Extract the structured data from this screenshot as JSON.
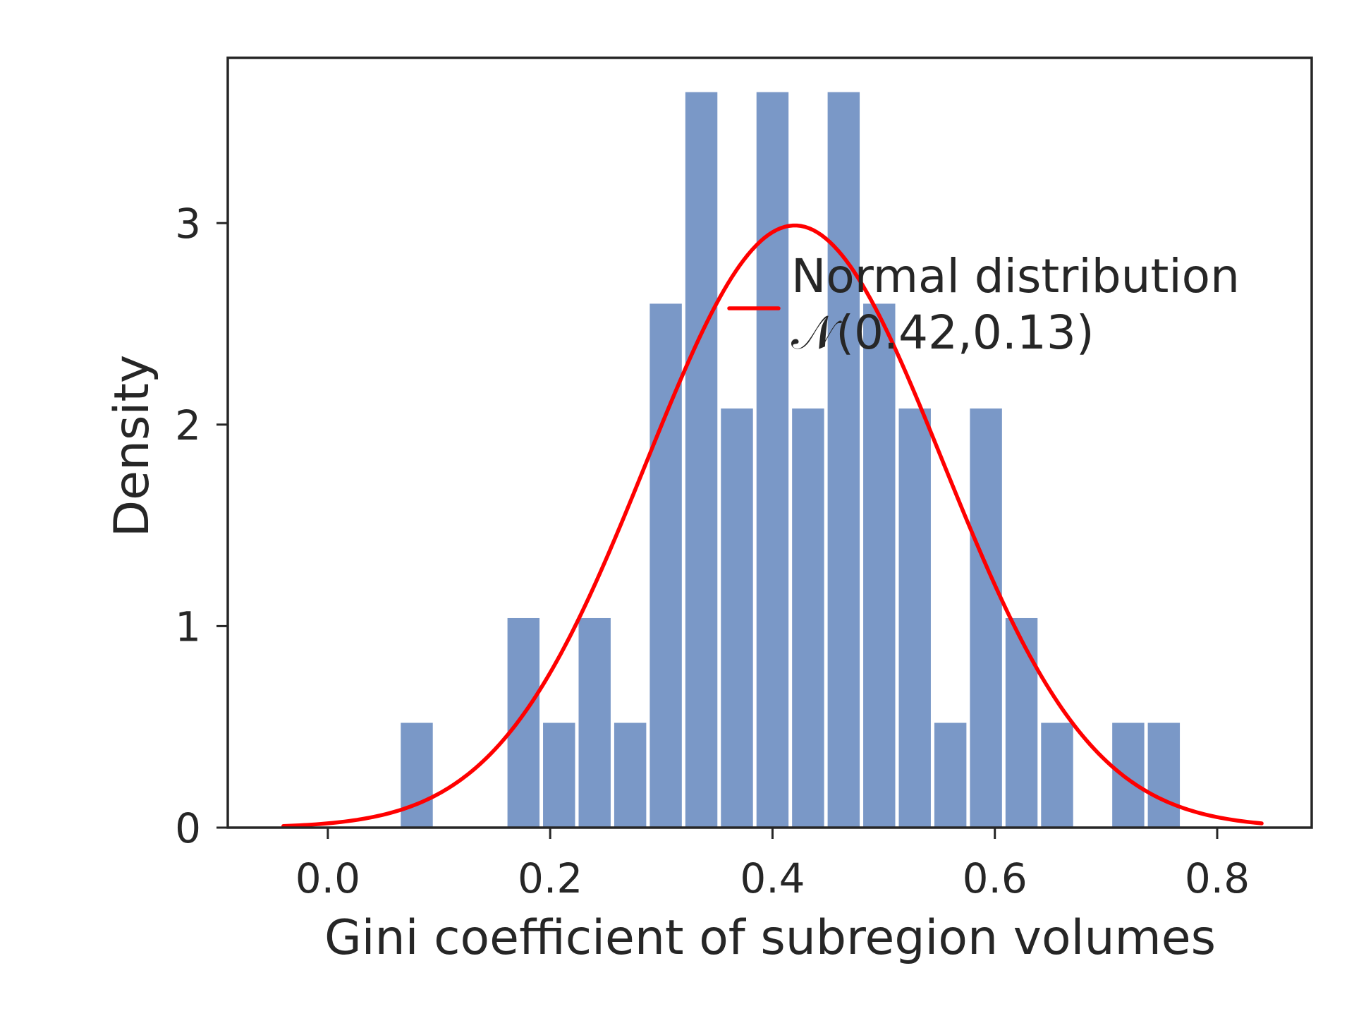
{
  "colors": {
    "bar": "#7a98c7",
    "curve": "#ff0000",
    "axis": "#262626",
    "text": "#262626"
  },
  "chart_data": {
    "type": "bar",
    "xlabel": "Gini coefficient of subregion volumes",
    "ylabel": "Density",
    "xlim": [
      -0.09,
      0.885
    ],
    "ylim": [
      0,
      3.82
    ],
    "x_ticks": [
      {
        "value": 0.0,
        "label": "0.0"
      },
      {
        "value": 0.2,
        "label": "0.2"
      },
      {
        "value": 0.4,
        "label": "0.4"
      },
      {
        "value": 0.6,
        "label": "0.6"
      },
      {
        "value": 0.8,
        "label": "0.8"
      }
    ],
    "y_ticks": [
      {
        "value": 0,
        "label": "0"
      },
      {
        "value": 1,
        "label": "1"
      },
      {
        "value": 2,
        "label": "2"
      },
      {
        "value": 3,
        "label": "3"
      }
    ],
    "grid": false,
    "bins": [
      {
        "x0": 0.064,
        "x1": 0.096,
        "density": 0.52
      },
      {
        "x0": 0.16,
        "x1": 0.192,
        "density": 1.04
      },
      {
        "x0": 0.192,
        "x1": 0.224,
        "density": 0.52
      },
      {
        "x0": 0.224,
        "x1": 0.256,
        "density": 1.04
      },
      {
        "x0": 0.256,
        "x1": 0.288,
        "density": 0.52
      },
      {
        "x0": 0.288,
        "x1": 0.32,
        "density": 2.6
      },
      {
        "x0": 0.32,
        "x1": 0.352,
        "density": 3.65
      },
      {
        "x0": 0.352,
        "x1": 0.384,
        "density": 2.08
      },
      {
        "x0": 0.384,
        "x1": 0.416,
        "density": 3.65
      },
      {
        "x0": 0.416,
        "x1": 0.448,
        "density": 2.08
      },
      {
        "x0": 0.448,
        "x1": 0.48,
        "density": 3.65
      },
      {
        "x0": 0.48,
        "x1": 0.512,
        "density": 2.6
      },
      {
        "x0": 0.512,
        "x1": 0.544,
        "density": 2.08
      },
      {
        "x0": 0.544,
        "x1": 0.576,
        "density": 0.52
      },
      {
        "x0": 0.576,
        "x1": 0.608,
        "density": 2.08
      },
      {
        "x0": 0.608,
        "x1": 0.64,
        "density": 1.04
      },
      {
        "x0": 0.64,
        "x1": 0.672,
        "density": 0.52
      },
      {
        "x0": 0.704,
        "x1": 0.736,
        "density": 0.52
      },
      {
        "x0": 0.736,
        "x1": 0.768,
        "density": 0.52
      }
    ],
    "curve": {
      "name": "Normal distribution",
      "formula_label": "𝒩(0.42,0.13)",
      "mean": 0.42,
      "sd": 0.1335,
      "x_range": [
        -0.04,
        0.84
      ]
    },
    "legend": {
      "placement": "upper-right",
      "line1": "Normal distribution",
      "line2": "𝒩(0.42,0.13)"
    }
  }
}
